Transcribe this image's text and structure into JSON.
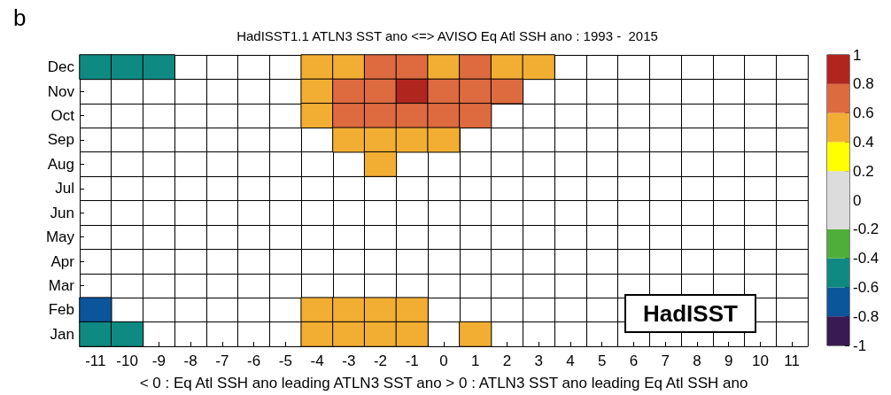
{
  "chart_data": {
    "type": "heatmap",
    "title": "HadISST1.1 ATLN3 SST ano <=> AVISO Eq Atl SSH ano : 1993 -  2015",
    "xlabel": "< 0 : Eq Atl SSH ano leading ATLN3 SST ano > 0 : ATLN3 SST ano leading Eq Atl SSH ano",
    "annotations": [
      "b",
      "HadISST"
    ],
    "categories": [
      "-11",
      "-10",
      "-9",
      "-8",
      "-7",
      "-6",
      "-5",
      "-4",
      "-3",
      "-2",
      "-1",
      "0",
      "1",
      "2",
      "3",
      "4",
      "5",
      "6",
      "7",
      "8",
      "9",
      "10",
      "11"
    ],
    "y_categories": [
      "Dec",
      "Nov",
      "Oct",
      "Sep",
      "Aug",
      "Jul",
      "Jun",
      "May",
      "Apr",
      "Mar",
      "Feb",
      "Jan"
    ],
    "cells": [
      [
        -0.5,
        -0.5,
        -0.5,
        null,
        null,
        null,
        null,
        0.5,
        0.5,
        0.7,
        0.7,
        0.5,
        0.7,
        0.5,
        0.5,
        null,
        null,
        null,
        null,
        null,
        null,
        null,
        null
      ],
      [
        null,
        null,
        null,
        null,
        null,
        null,
        null,
        0.5,
        0.7,
        0.7,
        0.9,
        0.7,
        0.7,
        0.7,
        null,
        null,
        null,
        null,
        null,
        null,
        null,
        null,
        null
      ],
      [
        null,
        null,
        null,
        null,
        null,
        null,
        null,
        0.5,
        0.7,
        0.7,
        0.7,
        0.7,
        0.7,
        null,
        null,
        null,
        null,
        null,
        null,
        null,
        null,
        null,
        null
      ],
      [
        null,
        null,
        null,
        null,
        null,
        null,
        null,
        null,
        0.5,
        0.5,
        0.5,
        0.5,
        null,
        null,
        null,
        null,
        null,
        null,
        null,
        null,
        null,
        null,
        null
      ],
      [
        null,
        null,
        null,
        null,
        null,
        null,
        null,
        null,
        null,
        0.5,
        null,
        null,
        null,
        null,
        null,
        null,
        null,
        null,
        null,
        null,
        null,
        null,
        null
      ],
      [
        null,
        null,
        null,
        null,
        null,
        null,
        null,
        null,
        null,
        null,
        null,
        null,
        null,
        null,
        null,
        null,
        null,
        null,
        null,
        null,
        null,
        null,
        null
      ],
      [
        null,
        null,
        null,
        null,
        null,
        null,
        null,
        null,
        null,
        null,
        null,
        null,
        null,
        null,
        null,
        null,
        null,
        null,
        null,
        null,
        null,
        null,
        null
      ],
      [
        null,
        null,
        null,
        null,
        null,
        null,
        null,
        null,
        null,
        null,
        null,
        null,
        null,
        null,
        null,
        null,
        null,
        null,
        null,
        null,
        null,
        null,
        null
      ],
      [
        null,
        null,
        null,
        null,
        null,
        null,
        null,
        null,
        null,
        null,
        null,
        null,
        null,
        null,
        null,
        null,
        null,
        null,
        null,
        null,
        null,
        null,
        null
      ],
      [
        null,
        null,
        null,
        null,
        null,
        null,
        null,
        null,
        null,
        null,
        null,
        null,
        null,
        null,
        null,
        null,
        null,
        null,
        null,
        null,
        null,
        null,
        null
      ],
      [
        -0.7,
        null,
        null,
        null,
        null,
        null,
        null,
        0.5,
        0.5,
        0.5,
        0.5,
        null,
        null,
        null,
        null,
        null,
        null,
        null,
        null,
        null,
        null,
        null,
        null
      ],
      [
        -0.5,
        -0.5,
        null,
        null,
        null,
        null,
        null,
        0.5,
        0.5,
        0.5,
        0.5,
        null,
        0.5,
        null,
        null,
        null,
        null,
        null,
        null,
        null,
        null,
        null,
        null
      ]
    ],
    "clim": [
      -1,
      1
    ],
    "cticks": [
      -1,
      -0.8,
      -0.6,
      -0.4,
      -0.2,
      0,
      0.2,
      0.4,
      0.6,
      0.8,
      1
    ],
    "colors": [
      "#3a1a52",
      "#0b559b",
      "#0e8a82",
      "#4eae3a",
      "#dcdcdc",
      "#dcdcdc",
      "#ffff00",
      "#f2ae33",
      "#de6a40",
      "#b0261e"
    ]
  }
}
